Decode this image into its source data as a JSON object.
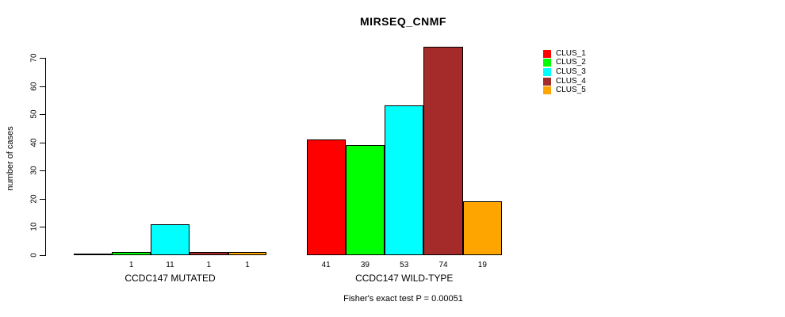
{
  "chart_data": {
    "type": "bar",
    "title": "MIRSEQ_CNMF",
    "ylabel": "number of cases",
    "xlabel": "",
    "categories": [
      "CCDC147 MUTATED",
      "CCDC147 WILD-TYPE"
    ],
    "series": [
      {
        "name": "CLUS_1",
        "color": "#FF0000",
        "values": [
          0,
          41
        ]
      },
      {
        "name": "CLUS_2",
        "color": "#00FF00",
        "values": [
          1,
          39
        ]
      },
      {
        "name": "CLUS_3",
        "color": "#00FFFF",
        "values": [
          11,
          53
        ]
      },
      {
        "name": "CLUS_4",
        "color": "#A52A2A",
        "values": [
          1,
          74
        ]
      },
      {
        "name": "CLUS_5",
        "color": "#FFA500",
        "values": [
          1,
          19
        ]
      }
    ],
    "bar_value_labels": [
      [
        "",
        "1",
        "11",
        "1",
        "1"
      ],
      [
        "41",
        "39",
        "53",
        "74",
        "19"
      ]
    ],
    "ylim": [
      0,
      70
    ],
    "yticks": [
      0,
      10,
      20,
      30,
      40,
      50,
      60,
      70
    ],
    "grid": false,
    "legend_position": "top-right-inside",
    "annotation": "Fisher's exact test P = 0.00051"
  }
}
